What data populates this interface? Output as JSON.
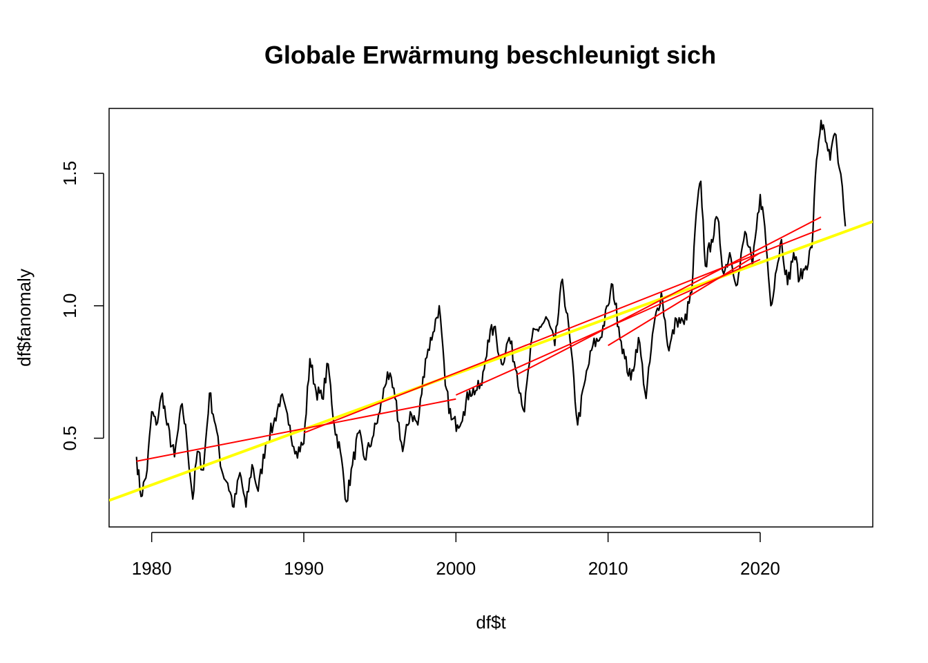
{
  "chart_data": {
    "type": "line",
    "title": "Globale Erwärmung beschleunigt sich",
    "xlabel": "df$t",
    "ylabel": "df$fanomaly",
    "xlim": [
      1977.2,
      2027.4
    ],
    "ylim": [
      0.165,
      1.745
    ],
    "x_ticks": [
      "1980",
      "1990",
      "2000",
      "2010",
      "2020"
    ],
    "y_ticks": [
      "0.5",
      "1.0",
      "1.5"
    ],
    "grid": false,
    "colors": {
      "data": "#000000",
      "segment_trends": "#ff0000",
      "overall_trend": "#ffff00"
    },
    "series": [
      {
        "type": "line",
        "x": [
          1979.0,
          1979.3,
          1979.7,
          1980.0,
          1980.3,
          1980.7,
          1981.0,
          1981.5,
          1982.0,
          1982.3,
          1982.7,
          1983.0,
          1983.4,
          1983.8,
          1984.2,
          1984.6,
          1985.0,
          1985.4,
          1985.8,
          1986.2,
          1986.6,
          1987.0,
          1987.5,
          1988.0,
          1988.5,
          1989.0,
          1989.5,
          1990.0,
          1990.4,
          1990.8,
          1991.2,
          1991.6,
          1992.0,
          1992.4,
          1992.8,
          1993.2,
          1993.6,
          1994.0,
          1994.5,
          1995.0,
          1995.5,
          1996.0,
          1996.5,
          1997.0,
          1997.5,
          1998.0,
          1998.5,
          1998.9,
          1999.3,
          1999.7,
          2000.1,
          2000.5,
          2000.9,
          2001.3,
          2001.7,
          2002.1,
          2002.5,
          2003.0,
          2003.5,
          2004.0,
          2004.5,
          2005.0,
          2005.5,
          2006.0,
          2006.5,
          2007.0,
          2007.5,
          2008.0,
          2008.5,
          2009.0,
          2009.5,
          2010.0,
          2010.3,
          2010.7,
          2011.1,
          2011.5,
          2012.0,
          2012.5,
          2013.0,
          2013.5,
          2014.0,
          2014.5,
          2015.0,
          2015.5,
          2015.8,
          2016.1,
          2016.4,
          2016.8,
          2017.2,
          2017.6,
          2018.0,
          2018.5,
          2019.0,
          2019.5,
          2020.0,
          2020.3,
          2020.7,
          2021.0,
          2021.4,
          2021.8,
          2022.2,
          2022.6,
          2023.0,
          2023.4,
          2023.7,
          2024.0,
          2024.3,
          2024.6,
          2024.9,
          2025.2,
          2025.4,
          2025.6
        ],
        "y": [
          0.43,
          0.28,
          0.38,
          0.6,
          0.55,
          0.67,
          0.55,
          0.43,
          0.63,
          0.5,
          0.27,
          0.45,
          0.38,
          0.67,
          0.55,
          0.38,
          0.33,
          0.24,
          0.37,
          0.24,
          0.4,
          0.3,
          0.48,
          0.55,
          0.66,
          0.55,
          0.45,
          0.48,
          0.8,
          0.68,
          0.65,
          0.78,
          0.55,
          0.45,
          0.26,
          0.4,
          0.52,
          0.42,
          0.5,
          0.6,
          0.75,
          0.65,
          0.45,
          0.6,
          0.55,
          0.8,
          0.9,
          1.0,
          0.7,
          0.57,
          0.55,
          0.6,
          0.68,
          0.68,
          0.7,
          0.87,
          0.92,
          0.78,
          0.88,
          0.75,
          0.6,
          0.88,
          0.92,
          0.95,
          0.85,
          1.1,
          0.87,
          0.55,
          0.72,
          0.85,
          0.88,
          1.0,
          1.08,
          0.92,
          0.8,
          0.72,
          0.88,
          0.65,
          0.92,
          1.05,
          0.83,
          0.95,
          0.93,
          1.05,
          1.35,
          1.47,
          1.15,
          1.25,
          1.33,
          1.12,
          1.2,
          1.08,
          1.28,
          1.15,
          1.42,
          1.3,
          1.0,
          1.12,
          1.25,
          1.08,
          1.2,
          1.1,
          1.15,
          1.22,
          1.55,
          1.7,
          1.62,
          1.55,
          1.65,
          1.52,
          1.45,
          1.3
        ]
      },
      {
        "type": "line",
        "x": [
          1977.2,
          2027.4
        ],
        "y": [
          0.265,
          1.318
        ]
      },
      {
        "type": "line",
        "x": [
          1979.0,
          2000.0
        ],
        "y": [
          0.413,
          0.648
        ]
      },
      {
        "type": "line",
        "x": [
          1990.0,
          2024.0
        ],
        "y": [
          0.52,
          1.29
        ]
      },
      {
        "type": "line",
        "x": [
          2000.0,
          2020.0
        ],
        "y": [
          0.663,
          1.175
        ]
      },
      {
        "type": "line",
        "x": [
          2004.0,
          2024.0
        ],
        "y": [
          0.74,
          1.335
        ]
      },
      {
        "type": "line",
        "x": [
          2010.0,
          2020.0
        ],
        "y": [
          0.85,
          1.2
        ]
      }
    ]
  }
}
